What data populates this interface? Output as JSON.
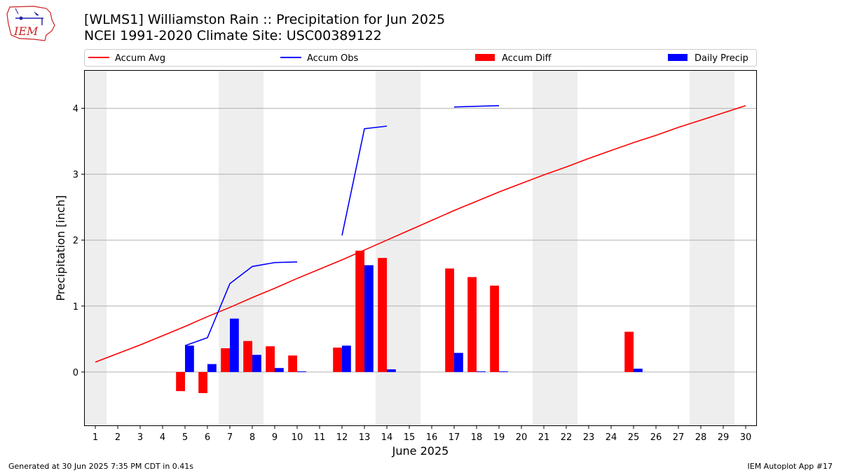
{
  "title": "[WLMS1] Williamston Rain :: Precipitation for Jun 2025",
  "subtitle": "NCEI 1991-2020 Climate Site: USC00389122",
  "footer_left": "Generated at 30 Jun 2025 7:35 PM CDT in 0.41s",
  "footer_right": "IEM Autoplot App #17",
  "logo_text": "IEM",
  "chart_data": {
    "type": "bar",
    "title": "",
    "xlabel": "June 2025",
    "ylabel": "Precipitation [inch]",
    "xlim": [
      0.5,
      30.5
    ],
    "ylim": [
      -0.82,
      4.58
    ],
    "yticks": [
      0,
      1,
      2,
      3,
      4
    ],
    "x": [
      1,
      2,
      3,
      4,
      5,
      6,
      7,
      8,
      9,
      10,
      11,
      12,
      13,
      14,
      15,
      16,
      17,
      18,
      19,
      20,
      21,
      22,
      23,
      24,
      25,
      26,
      27,
      28,
      29,
      30
    ],
    "weekend_days": [
      1,
      7,
      8,
      14,
      15,
      21,
      22,
      28,
      29
    ],
    "grid": "horizontal",
    "legend_position": "top",
    "legend": [
      "Accum Avg",
      "Accum Obs",
      "Accum Diff",
      "Daily Precip"
    ],
    "colors": {
      "accum_avg": "#ff0000",
      "accum_obs": "#0000ff",
      "accum_diff": "#ff0000",
      "daily_precip": "#0000ff",
      "weekend_band": "#eeeeee",
      "grid": "#b0b0b0"
    },
    "series": [
      {
        "name": "Accum Avg",
        "kind": "line",
        "values": [
          0.15,
          0.28,
          0.41,
          0.55,
          0.69,
          0.84,
          0.98,
          1.13,
          1.27,
          1.42,
          1.56,
          1.7,
          1.85,
          2.0,
          2.15,
          2.3,
          2.45,
          2.59,
          2.73,
          2.86,
          2.99,
          3.11,
          3.24,
          3.36,
          3.48,
          3.59,
          3.71,
          3.82,
          3.93,
          4.04
        ]
      },
      {
        "name": "Accum Obs",
        "kind": "line",
        "values": [
          null,
          null,
          null,
          null,
          0.4,
          0.52,
          1.34,
          1.6,
          1.66,
          1.67,
          null,
          2.07,
          3.69,
          3.73,
          null,
          null,
          4.02,
          4.03,
          4.04,
          null,
          null,
          null,
          null,
          null,
          null,
          null,
          null,
          null,
          null,
          null
        ]
      },
      {
        "name": "Accum Diff",
        "kind": "bar",
        "values": [
          null,
          null,
          null,
          null,
          -0.29,
          -0.32,
          0.36,
          0.47,
          0.39,
          0.25,
          null,
          0.37,
          1.84,
          1.73,
          null,
          null,
          1.57,
          1.44,
          1.31,
          null,
          null,
          null,
          null,
          null,
          0.61,
          null,
          null,
          null,
          null,
          null
        ]
      },
      {
        "name": "Daily Precip",
        "kind": "bar",
        "values": [
          null,
          null,
          null,
          null,
          0.4,
          0.12,
          0.81,
          0.26,
          0.06,
          0.01,
          null,
          0.4,
          1.62,
          0.04,
          null,
          null,
          0.29,
          0.01,
          0.01,
          null,
          null,
          null,
          null,
          null,
          0.05,
          null,
          null,
          null,
          null,
          null
        ]
      }
    ]
  }
}
